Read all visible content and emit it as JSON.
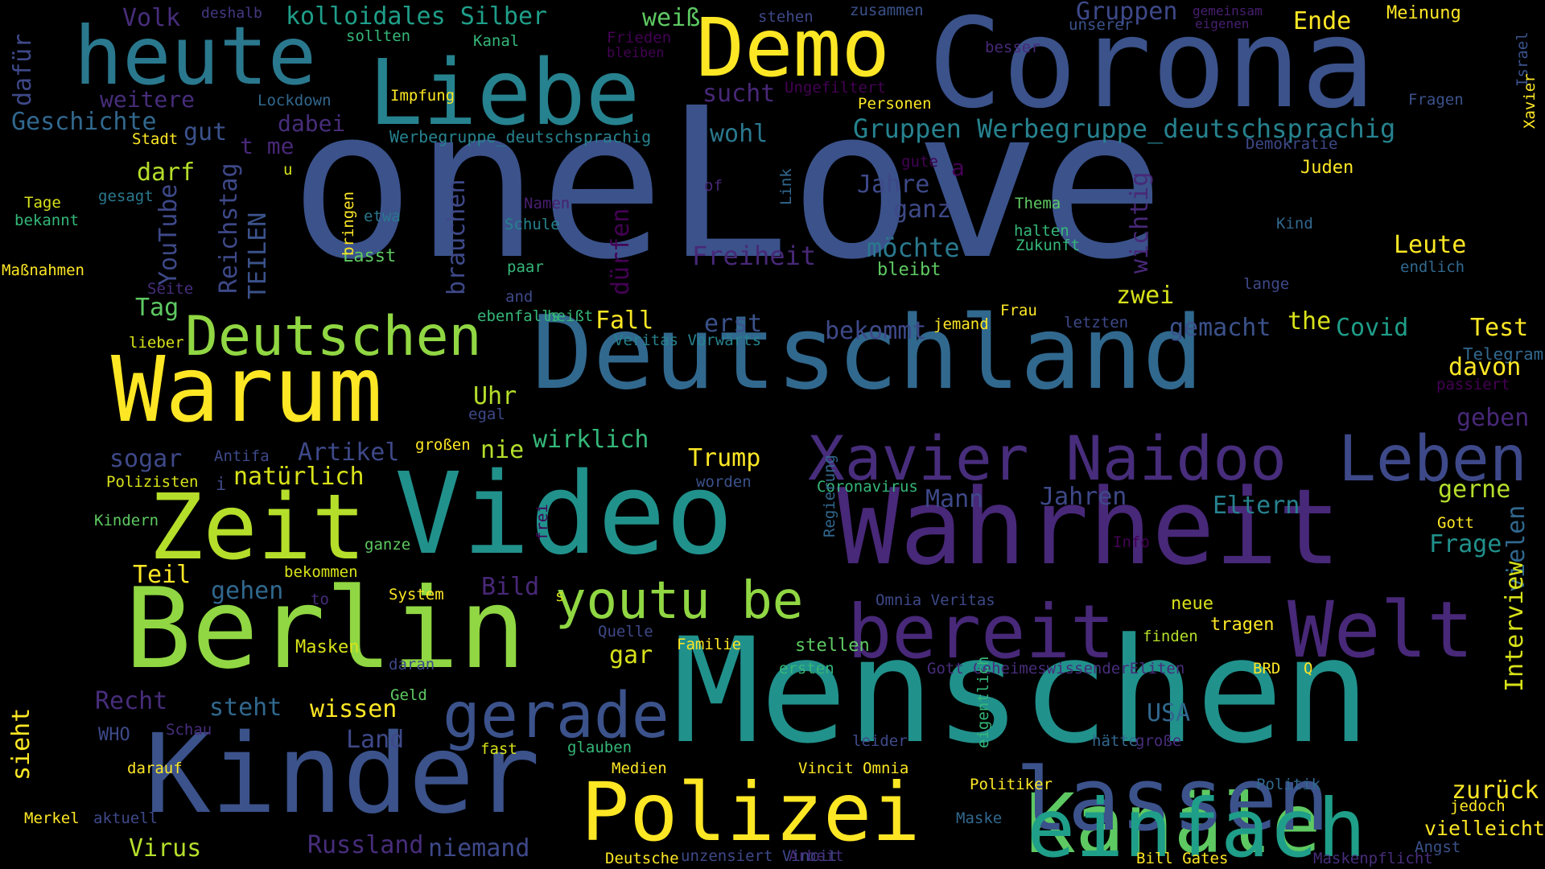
{
  "words": [
    {
      "text": "oneLove",
      "color": "#3b528b"
    },
    {
      "text": "Corona",
      "color": "#3b528b"
    },
    {
      "text": "Deutschland",
      "color": "#31688e"
    },
    {
      "text": "Menschen",
      "color": "#21918c"
    },
    {
      "text": "Video",
      "color": "#21918c"
    },
    {
      "text": "Wahrheit",
      "color": "#482878"
    },
    {
      "text": "Kinder",
      "color": "#3b528b"
    },
    {
      "text": "Berlin",
      "color": "#90d743"
    },
    {
      "text": "Zeit",
      "color": "#b5de2b"
    },
    {
      "text": "Warum",
      "color": "#fde725"
    },
    {
      "text": "Liebe",
      "color": "#26828e"
    },
    {
      "text": "heute",
      "color": "#2a788e"
    },
    {
      "text": "Demo",
      "color": "#fde725"
    },
    {
      "text": "Kanäle",
      "color": "#5ec962"
    },
    {
      "text": "lassen",
      "color": "#3b528b"
    },
    {
      "text": "einfach",
      "color": "#1f9e89"
    },
    {
      "text": "Polizei",
      "color": "#fde725"
    },
    {
      "text": "bereit",
      "color": "#482878"
    },
    {
      "text": "Welt",
      "color": "#482878"
    },
    {
      "text": "Leben",
      "color": "#3e4989"
    },
    {
      "text": "Xavier Naidoo",
      "color": "#472d7b"
    },
    {
      "text": "Deutschen",
      "color": "#90d743"
    },
    {
      "text": "gerade",
      "color": "#3b528b"
    },
    {
      "text": "youtu be",
      "color": "#90d743"
    },
    {
      "text": "Telegram",
      "color": "#31688e"
    },
    {
      "text": "Gruppen Werbegruppe_deutschsprachig",
      "color": "#26828e"
    },
    {
      "text": "kolloidales Silber",
      "color": "#1f9e89"
    },
    {
      "text": "Volk",
      "color": "#472d7b"
    },
    {
      "text": "deshalb",
      "color": "#443983"
    },
    {
      "text": "weiß",
      "color": "#5ec962"
    },
    {
      "text": "stehen",
      "color": "#3e4989"
    },
    {
      "text": "zusammen",
      "color": "#3b528b"
    },
    {
      "text": "Gruppen",
      "color": "#3e4989"
    },
    {
      "text": "gemeinsam",
      "color": "#481f70"
    },
    {
      "text": "eigenen",
      "color": "#481f70"
    },
    {
      "text": "unserer",
      "color": "#3b528b"
    },
    {
      "text": "Ende",
      "color": "#fde725"
    },
    {
      "text": "Meinung",
      "color": "#fde725"
    },
    {
      "text": "sollten",
      "color": "#35b779"
    },
    {
      "text": "Kanal",
      "color": "#35b779"
    },
    {
      "text": "Frieden",
      "color": "#440154"
    },
    {
      "text": "bleiben",
      "color": "#440154"
    },
    {
      "text": "besser",
      "color": "#482878"
    },
    {
      "text": "weitere",
      "color": "#472d7b"
    },
    {
      "text": "Lockdown",
      "color": "#31688e"
    },
    {
      "text": "Impfung",
      "color": "#fde725"
    },
    {
      "text": "sucht",
      "color": "#482878"
    },
    {
      "text": "Ungefiltert",
      "color": "#440154"
    },
    {
      "text": "Personen",
      "color": "#fde725"
    },
    {
      "text": "Fragen",
      "color": "#3b528b"
    },
    {
      "text": "Geschichte",
      "color": "#31688e"
    },
    {
      "text": "gut",
      "color": "#3b528b"
    },
    {
      "text": "dabei",
      "color": "#472d7b"
    },
    {
      "text": "Werbegruppe_deutschsprachig",
      "color": "#26828e"
    },
    {
      "text": "wohl",
      "color": "#2a788e"
    },
    {
      "text": "Demokratie",
      "color": "#3e4989"
    },
    {
      "text": "Stadt",
      "color": "#fde725"
    },
    {
      "text": "t me",
      "color": "#482878"
    },
    {
      "text": "u",
      "color": "#d8e219"
    },
    {
      "text": "Juden",
      "color": "#fde725"
    },
    {
      "text": "darf",
      "color": "#b5de2b"
    },
    {
      "text": "gesagt",
      "color": "#2a788e"
    },
    {
      "text": "Jahre",
      "color": "#3e4989"
    },
    {
      "text": "gute",
      "color": "#440154"
    },
    {
      "text": "a",
      "color": "#440154"
    },
    {
      "text": "of",
      "color": "#482878"
    },
    {
      "text": "Tage",
      "color": "#d8e219"
    },
    {
      "text": "bekannt",
      "color": "#35b779"
    },
    {
      "text": "Namen",
      "color": "#481f70"
    },
    {
      "text": "ganz",
      "color": "#3e4989"
    },
    {
      "text": "Thema",
      "color": "#5ec962"
    },
    {
      "text": "Kind",
      "color": "#31688e"
    },
    {
      "text": "Schule",
      "color": "#26828e"
    },
    {
      "text": "halten",
      "color": "#35b779"
    },
    {
      "text": "Zukunft",
      "color": "#35b779"
    },
    {
      "text": "etwa",
      "color": "#2a788e"
    },
    {
      "text": "Lasst",
      "color": "#5ec962"
    },
    {
      "text": "Freiheit",
      "color": "#482878"
    },
    {
      "text": "möchte",
      "color": "#2a788e"
    },
    {
      "text": "Leute",
      "color": "#fde725"
    },
    {
      "text": "bleibt",
      "color": "#5ec962"
    },
    {
      "text": "endlich",
      "color": "#31688e"
    },
    {
      "text": "Maßnahmen",
      "color": "#fde725"
    },
    {
      "text": "paar",
      "color": "#35b779"
    },
    {
      "text": "Seite",
      "color": "#472d7b"
    },
    {
      "text": "lange",
      "color": "#3e4989"
    },
    {
      "text": "Tag",
      "color": "#5ec962"
    },
    {
      "text": "and",
      "color": "#3e4989"
    },
    {
      "text": "zwei",
      "color": "#d8e219"
    },
    {
      "text": "ebenfalls",
      "color": "#35b779"
    },
    {
      "text": "heißt",
      "color": "#35b779"
    },
    {
      "text": "Frau",
      "color": "#fde725"
    },
    {
      "text": "jemand",
      "color": "#fde725"
    },
    {
      "text": "letzten",
      "color": "#3e4989"
    },
    {
      "text": "Fall",
      "color": "#fde725"
    },
    {
      "text": "erst",
      "color": "#3b528b"
    },
    {
      "text": "bekommt",
      "color": "#3e4989"
    },
    {
      "text": "gemacht",
      "color": "#3b528b"
    },
    {
      "text": "the",
      "color": "#d8e219"
    },
    {
      "text": "Covid",
      "color": "#1f9e89"
    },
    {
      "text": "Test",
      "color": "#fde725"
    },
    {
      "text": "lieber",
      "color": "#d8e219"
    },
    {
      "text": "Veritas Vorwärts",
      "color": "#26828e"
    },
    {
      "text": "davon",
      "color": "#fde725"
    },
    {
      "text": "passiert",
      "color": "#440154"
    },
    {
      "text": "Uhr",
      "color": "#b5de2b"
    },
    {
      "text": "egal",
      "color": "#3e4989"
    },
    {
      "text": "geben",
      "color": "#482878"
    },
    {
      "text": "Artikel",
      "color": "#3e4989"
    },
    {
      "text": "nie",
      "color": "#b5de2b"
    },
    {
      "text": "wirklich",
      "color": "#35b779"
    },
    {
      "text": "sogar",
      "color": "#3e4989"
    },
    {
      "text": "Antifa",
      "color": "#3e4989"
    },
    {
      "text": "großen",
      "color": "#fde725"
    },
    {
      "text": "Trump",
      "color": "#fde725"
    },
    {
      "text": "natürlich",
      "color": "#d8e219"
    },
    {
      "text": "Polizisten",
      "color": "#d8e219"
    },
    {
      "text": "i",
      "color": "#3e4989"
    },
    {
      "text": "worden",
      "color": "#3b528b"
    },
    {
      "text": "Coronavirus",
      "color": "#35b779"
    },
    {
      "text": "Mann",
      "color": "#3e4989"
    },
    {
      "text": "Jahren",
      "color": "#3e4989"
    },
    {
      "text": "Eltern",
      "color": "#26828e"
    },
    {
      "text": "gerne",
      "color": "#b5de2b"
    },
    {
      "text": "Kindern",
      "color": "#5ec962"
    },
    {
      "text": "Gott",
      "color": "#fde725"
    },
    {
      "text": "Info",
      "color": "#440154"
    },
    {
      "text": "Frage",
      "color": "#21918c"
    },
    {
      "text": "ganze",
      "color": "#5ec962"
    },
    {
      "text": "bekommen",
      "color": "#d8e219"
    },
    {
      "text": "Teil",
      "color": "#fde725"
    },
    {
      "text": "Bild",
      "color": "#482878"
    },
    {
      "text": "gehen",
      "color": "#31688e"
    },
    {
      "text": "to",
      "color": "#472d7b"
    },
    {
      "text": "System",
      "color": "#fde725"
    },
    {
      "text": "s",
      "color": "#d8e219"
    },
    {
      "text": "Omnia Veritas",
      "color": "#3e4989"
    },
    {
      "text": "neue",
      "color": "#d8e219"
    },
    {
      "text": "Quelle",
      "color": "#3e4989"
    },
    {
      "text": "tragen",
      "color": "#fde725"
    },
    {
      "text": "finden",
      "color": "#b5de2b"
    },
    {
      "text": "Familie",
      "color": "#fde725"
    },
    {
      "text": "gar",
      "color": "#d8e219"
    },
    {
      "text": "stellen",
      "color": "#5ec962"
    },
    {
      "text": "Masken",
      "color": "#d8e219"
    },
    {
      "text": "daran",
      "color": "#3e4989"
    },
    {
      "text": "ersten",
      "color": "#35b779"
    },
    {
      "text": "Gott GeheimeswissenderEliten",
      "color": "#472d7b"
    },
    {
      "text": "BRD",
      "color": "#fde725"
    },
    {
      "text": "Q",
      "color": "#fde725"
    },
    {
      "text": "Recht",
      "color": "#472d7b"
    },
    {
      "text": "Geld",
      "color": "#5ec962"
    },
    {
      "text": "steht",
      "color": "#31688e"
    },
    {
      "text": "wissen",
      "color": "#fde725"
    },
    {
      "text": "USA",
      "color": "#31688e"
    },
    {
      "text": "WHO",
      "color": "#3e4989"
    },
    {
      "text": "Schau",
      "color": "#472d7b"
    },
    {
      "text": "Land",
      "color": "#3e4989"
    },
    {
      "text": "hätte",
      "color": "#31688e"
    },
    {
      "text": "fast",
      "color": "#d8e219"
    },
    {
      "text": "leider",
      "color": "#3e4989"
    },
    {
      "text": "glauben",
      "color": "#35b779"
    },
    {
      "text": "große",
      "color": "#472d7b"
    },
    {
      "text": "darauf",
      "color": "#fde725"
    },
    {
      "text": "Medien",
      "color": "#fde725"
    },
    {
      "text": "Vincit Omnia",
      "color": "#fde725"
    },
    {
      "text": "Politiker",
      "color": "#fde725"
    },
    {
      "text": "Politik",
      "color": "#31688e"
    },
    {
      "text": "zurück",
      "color": "#fde725"
    },
    {
      "text": "jedoch",
      "color": "#fde725"
    },
    {
      "text": "Merkel",
      "color": "#fde725"
    },
    {
      "text": "aktuell",
      "color": "#3e4989"
    },
    {
      "text": "Maske",
      "color": "#31688e"
    },
    {
      "text": "vielleicht",
      "color": "#fde725"
    },
    {
      "text": "Virus",
      "color": "#b5de2b"
    },
    {
      "text": "Russland",
      "color": "#472d7b"
    },
    {
      "text": "niemand",
      "color": "#3e4989"
    },
    {
      "text": "Deutsche",
      "color": "#fde725"
    },
    {
      "text": "unzensiert Vincit",
      "color": "#3e4989"
    },
    {
      "text": "Arbeit",
      "color": "#472d7b"
    },
    {
      "text": "Bill Gates",
      "color": "#fde725"
    },
    {
      "text": "Maskenpflicht",
      "color": "#472d7b"
    },
    {
      "text": "Angst",
      "color": "#3b528b"
    },
    {
      "text": "dafür",
      "color": "#3e4989"
    },
    {
      "text": "YouTube",
      "color": "#3e4989"
    },
    {
      "text": "Reichstag",
      "color": "#3e4989"
    },
    {
      "text": "TEILEN",
      "color": "#3b528b"
    },
    {
      "text": "brauchen",
      "color": "#3e4989"
    },
    {
      "text": "dürfen",
      "color": "#440154"
    },
    {
      "text": "bringen",
      "color": "#fde725"
    },
    {
      "text": "Link",
      "color": "#31688e"
    },
    {
      "text": "wichtig",
      "color": "#482878"
    },
    {
      "text": "Israel",
      "color": "#3b528b"
    },
    {
      "text": "Xavier",
      "color": "#fde725"
    },
    {
      "text": "vielen",
      "color": "#31688e"
    },
    {
      "text": "Interview",
      "color": "#d8e219"
    },
    {
      "text": "frei",
      "color": "#440154"
    },
    {
      "text": "Regierung",
      "color": "#31688e"
    },
    {
      "text": "sieht",
      "color": "#fde725"
    },
    {
      "text": "eigentlich",
      "color": "#35b779"
    }
  ]
}
